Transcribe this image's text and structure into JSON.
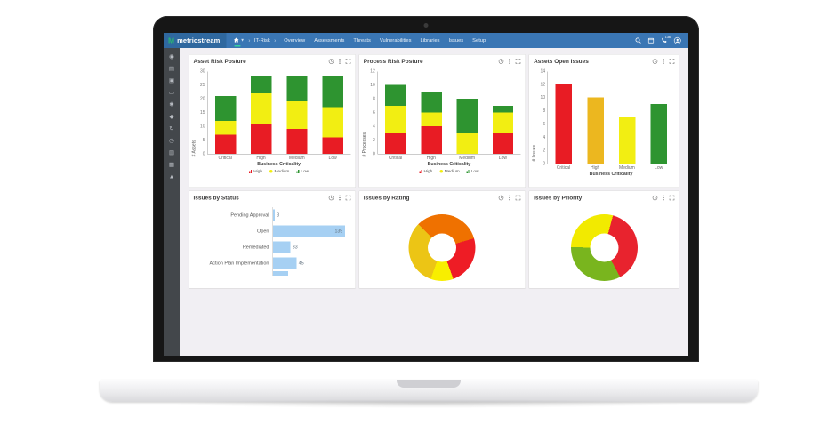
{
  "navbar": {
    "logo_text": "metricstream",
    "logo_glyph": "M",
    "breadcrumb": {
      "items": [
        "IT-Risk"
      ]
    },
    "nav_items": [
      "Overview",
      "Assessments",
      "Threats",
      "Vulnerabilities",
      "Libraries",
      "Issues",
      "Setup"
    ],
    "phone_badge": "136",
    "right_icons": [
      "search-icon",
      "calendar-icon",
      "phone-icon",
      "user-avatar-icon"
    ]
  },
  "sidebar": {
    "icons": [
      {
        "name": "dashboard-icon",
        "glyph": "◉"
      },
      {
        "name": "reports-icon",
        "glyph": "▤"
      },
      {
        "name": "assessments-icon",
        "glyph": "▣"
      },
      {
        "name": "monitor-icon",
        "glyph": "▭"
      },
      {
        "name": "settings-icon",
        "glyph": "✱"
      },
      {
        "name": "assets-icon",
        "glyph": "◆"
      },
      {
        "name": "refresh-icon",
        "glyph": "↻"
      },
      {
        "name": "history-icon",
        "glyph": "◷"
      },
      {
        "name": "documents-icon",
        "glyph": "▥"
      },
      {
        "name": "library-icon",
        "glyph": "▦"
      },
      {
        "name": "alerts-icon",
        "glyph": "▲"
      }
    ]
  },
  "card_header_icons": [
    "history-icon",
    "kebab-menu-icon",
    "expand-icon"
  ],
  "chart_data": [
    {
      "id": "asset_risk_posture",
      "type": "bar",
      "stacked": true,
      "title": "Asset Risk Posture",
      "categories": [
        "Critical",
        "High",
        "Medium",
        "Low"
      ],
      "series": [
        {
          "name": "High",
          "color": "#e81c24",
          "values": [
            7,
            11,
            9,
            6
          ]
        },
        {
          "name": "Medium",
          "color": "#f2ee12",
          "values": [
            5,
            11,
            10,
            11
          ]
        },
        {
          "name": "Low",
          "color": "#2e9430",
          "values": [
            9,
            6,
            9,
            11
          ]
        }
      ],
      "xlabel": "Business Criticality",
      "ylabel": "# Assets",
      "ylim": [
        0,
        30
      ],
      "ytick_step": 5,
      "legend": [
        "High",
        "Medium",
        "Low"
      ],
      "legend_position": "bottom"
    },
    {
      "id": "process_risk_posture",
      "type": "bar",
      "stacked": true,
      "title": "Process Risk Posture",
      "categories": [
        "Critical",
        "High",
        "Medium",
        "Low"
      ],
      "series": [
        {
          "name": "High",
          "color": "#e81c24",
          "values": [
            3,
            4,
            0,
            3
          ]
        },
        {
          "name": "Medium",
          "color": "#f2ee12",
          "values": [
            4,
            2,
            3,
            3
          ]
        },
        {
          "name": "Low",
          "color": "#2e9430",
          "values": [
            3,
            3,
            5,
            1
          ]
        }
      ],
      "xlabel": "Business Criticality",
      "ylabel": "# Processes",
      "ylim": [
        0,
        12
      ],
      "ytick_step": 2,
      "legend": [
        "High",
        "Medium",
        "Low"
      ],
      "legend_position": "bottom"
    },
    {
      "id": "assets_open_issues",
      "type": "bar",
      "title": "Assets Open Issues",
      "categories": [
        "Critical",
        "High",
        "Medium",
        "Low"
      ],
      "values": [
        12,
        10,
        7,
        9
      ],
      "colors": [
        "#e81c24",
        "#ecb71f",
        "#f2ee12",
        "#2e9430"
      ],
      "xlabel": "Business Criticality",
      "ylabel": "# Issues",
      "ylim": [
        0,
        14
      ],
      "ytick_step": 2
    },
    {
      "id": "issues_by_status",
      "type": "bar",
      "orientation": "horizontal",
      "title": "Issues by Status",
      "categories": [
        "Pending Approval",
        "Open",
        "Remediated",
        "Action Plan Implementation"
      ],
      "values": [
        3,
        139,
        33,
        45
      ],
      "bar_color": "#a6d0f3",
      "xlim": [
        0,
        146
      ],
      "partial_next_bar": true
    },
    {
      "id": "issues_by_rating",
      "type": "pie",
      "donut": true,
      "title": "Issues by Rating",
      "start_angle_deg": -45,
      "segments": [
        {
          "color": "#ef7100",
          "percent": 33
        },
        {
          "color": "#ee1c25",
          "percent": 24
        },
        {
          "color": "#f8ee00",
          "percent": 11
        },
        {
          "color": "#ecc515",
          "percent": 32
        }
      ]
    },
    {
      "id": "issues_by_priority",
      "type": "pie",
      "donut": true,
      "title": "Issues by Priority",
      "start_angle_deg": 15,
      "segments": [
        {
          "color": "#e8232e",
          "percent": 38
        },
        {
          "color": "#79b51e",
          "percent": 33
        },
        {
          "color": "#f2ea00",
          "percent": 29
        }
      ]
    }
  ]
}
